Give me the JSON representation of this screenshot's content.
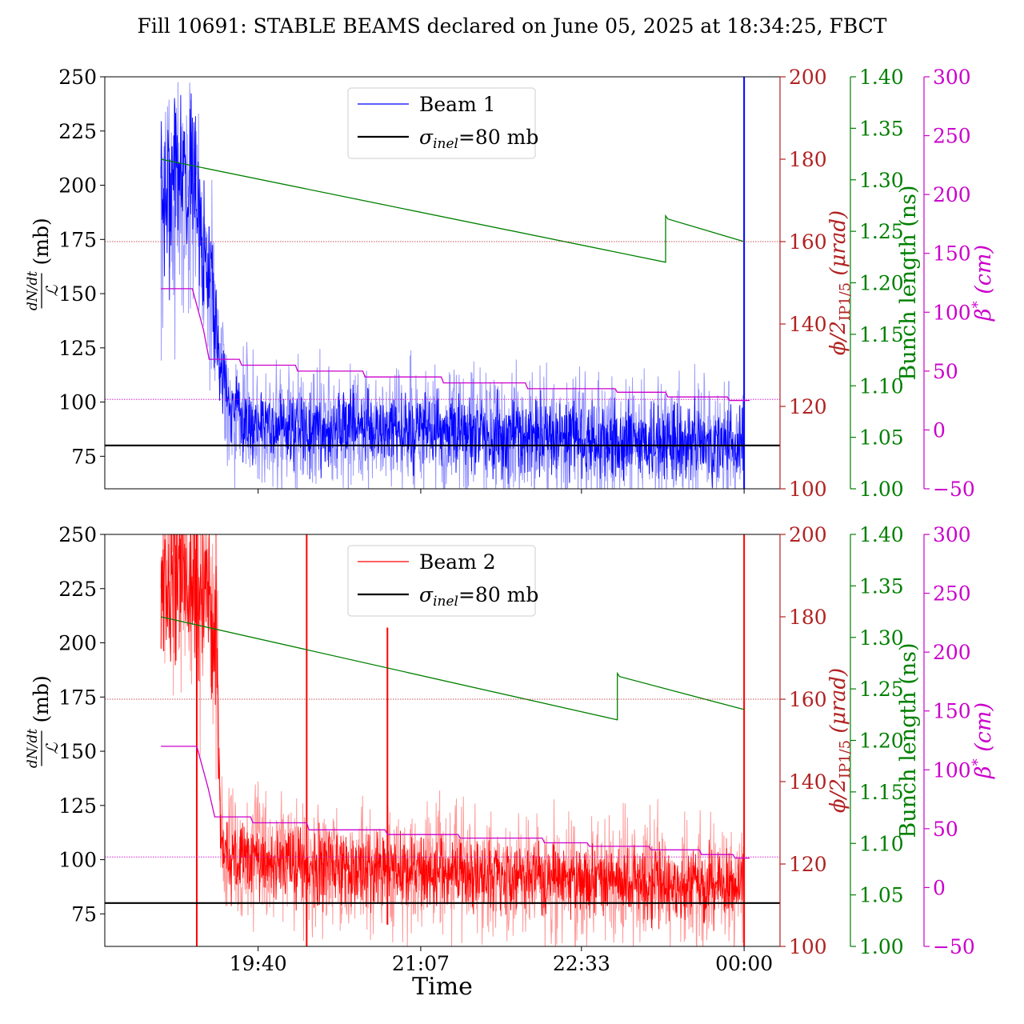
{
  "title": "Fill 10691: STABLE BEAMS declared on June 05, 2025 at 18:34:25, FBCT",
  "colors": {
    "beam1": "#0000ff",
    "beam1_light": "#9999ff",
    "beam2": "#ff0000",
    "beam2_light": "#ff9999",
    "crossing_angle": "#b22222",
    "bunch_length": "#008000",
    "beta_star": "#cc00cc",
    "reference": "#000000"
  },
  "chart_data": [
    {
      "type": "line",
      "panel": "top",
      "xlabel": "",
      "x_ticks": [
        "19:40",
        "21:07",
        "22:33",
        "00:00"
      ],
      "x_tick_hours": [
        19.667,
        21.117,
        22.55,
        24.0
      ],
      "xlim_hours": [
        18.3,
        24.32
      ],
      "ylabel": {
        "fraction_top": "dN/dt",
        "fraction_bottom": "ℒ",
        "unit": "(mb)"
      },
      "ylim": [
        60,
        250
      ],
      "y_ticks": [
        "75",
        "100",
        "125",
        "150",
        "175",
        "200",
        "225",
        "250"
      ],
      "y_tick_values": [
        75,
        100,
        125,
        150,
        175,
        200,
        225,
        250
      ],
      "legend": {
        "position": "upper-center",
        "entries": [
          {
            "label": "Beam 1",
            "series": "beam1"
          },
          {
            "label_symbol": "σ",
            "label_sub": "inel",
            "label_rest": "=80 mb",
            "series": "reference"
          }
        ]
      },
      "right_axes": [
        {
          "id": "phi",
          "label_main": "ϕ/2",
          "label_sub": "IP1/5",
          "label_unit": " (μrad)",
          "ylim": [
            100,
            200
          ],
          "ticks": [
            "100",
            "120",
            "140",
            "160",
            "180",
            "200"
          ],
          "tick_values": [
            100,
            120,
            140,
            160,
            180,
            200
          ]
        },
        {
          "id": "bunch",
          "label": "Bunch length (ns)",
          "ylim": [
            1.0,
            1.4
          ],
          "ticks": [
            "1.00",
            "1.05",
            "1.10",
            "1.15",
            "1.20",
            "1.25",
            "1.30",
            "1.35",
            "1.40"
          ],
          "tick_values": [
            1.0,
            1.05,
            1.1,
            1.15,
            1.2,
            1.25,
            1.3,
            1.35,
            1.4
          ]
        },
        {
          "id": "beta",
          "label_main": "β",
          "label_sup": "*",
          "label_unit": " (cm)",
          "ylim": [
            -50,
            300
          ],
          "ticks": [
            "−50",
            "0",
            "50",
            "100",
            "150",
            "200",
            "250",
            "300"
          ],
          "tick_values": [
            -50,
            0,
            50,
            100,
            150,
            200,
            250,
            300
          ]
        }
      ],
      "series": [
        {
          "name": "Beam 1",
          "axis": "left",
          "kind": "noisy",
          "base": {
            "x_hours": [
              18.8,
              18.95,
              19.1,
              19.25,
              19.4,
              19.6,
              20.0,
              21.0,
              22.0,
              23.0,
              23.95,
              24.0
            ],
            "y": [
              190,
              205,
              200,
              150,
              100,
              90,
              88,
              86,
              84,
              82,
              80,
              80
            ]
          },
          "noise_amplitude": [
            70,
            70,
            60,
            45,
            30,
            30,
            30,
            30,
            30,
            30,
            30,
            30
          ],
          "spikes": [
            {
              "x_hours": 24.0,
              "y_from": 60,
              "y_to": 250
            }
          ],
          "seed": 7
        },
        {
          "name": "bunch length",
          "axis": "bunch",
          "kind": "line",
          "x_hours": [
            18.8,
            23.3,
            23.3,
            23.32,
            24.0
          ],
          "y": [
            1.32,
            1.22,
            1.265,
            1.262,
            1.24
          ]
        },
        {
          "name": "beta star",
          "axis": "beta",
          "kind": "line",
          "x_hours": [
            18.8,
            19.08,
            19.18,
            19.23,
            19.5,
            19.52,
            20.0,
            20.02,
            20.6,
            20.62,
            21.3,
            21.32,
            22.05,
            22.07,
            22.85,
            22.87,
            23.3,
            23.32,
            23.85,
            23.87,
            24.05
          ],
          "y": [
            120,
            120,
            85,
            60,
            60,
            55,
            55,
            50,
            50,
            45,
            45,
            40,
            40,
            35,
            35,
            32,
            32,
            28,
            28,
            25,
            25
          ]
        },
        {
          "name": "crossing angle",
          "axis": "phi",
          "kind": "line",
          "style": "dotted",
          "x_hours": [
            18.3,
            24.32
          ],
          "y": [
            160,
            160
          ]
        },
        {
          "name": "beta reference",
          "axis": "beta",
          "kind": "line",
          "style": "dotted",
          "x_hours": [
            18.3,
            24.32
          ],
          "y": [
            26,
            26
          ]
        },
        {
          "name": "sigma inel",
          "axis": "left",
          "kind": "line",
          "x_hours": [
            18.3,
            24.32
          ],
          "y": [
            80,
            80
          ]
        }
      ]
    },
    {
      "type": "line",
      "panel": "bottom",
      "xlabel": "Time",
      "x_ticks": [
        "19:40",
        "21:07",
        "22:33",
        "00:00"
      ],
      "x_tick_hours": [
        19.667,
        21.117,
        22.55,
        24.0
      ],
      "xlim_hours": [
        18.3,
        24.32
      ],
      "ylabel": {
        "fraction_top": "dN/dt",
        "fraction_bottom": "ℒ",
        "unit": "(mb)"
      },
      "ylim": [
        60,
        250
      ],
      "y_ticks": [
        "75",
        "100",
        "125",
        "150",
        "175",
        "200",
        "225",
        "250"
      ],
      "y_tick_values": [
        75,
        100,
        125,
        150,
        175,
        200,
        225,
        250
      ],
      "legend": {
        "position": "upper-center",
        "entries": [
          {
            "label": "Beam 2",
            "series": "beam2"
          },
          {
            "label_symbol": "σ",
            "label_sub": "inel",
            "label_rest": "=80 mb",
            "series": "reference"
          }
        ]
      },
      "right_axes": [
        {
          "id": "phi",
          "label_main": "ϕ/2",
          "label_sub": "IP1/5",
          "label_unit": " (μrad)",
          "ylim": [
            100,
            200
          ],
          "ticks": [
            "100",
            "120",
            "140",
            "160",
            "180",
            "200"
          ],
          "tick_values": [
            100,
            120,
            140,
            160,
            180,
            200
          ]
        },
        {
          "id": "bunch",
          "label": "Bunch length (ns)",
          "ylim": [
            1.0,
            1.4
          ],
          "ticks": [
            "1.00",
            "1.05",
            "1.10",
            "1.15",
            "1.20",
            "1.25",
            "1.30",
            "1.35",
            "1.40"
          ],
          "tick_values": [
            1.0,
            1.05,
            1.1,
            1.15,
            1.2,
            1.25,
            1.3,
            1.35,
            1.4
          ]
        },
        {
          "id": "beta",
          "label_main": "β",
          "label_sup": "*",
          "label_unit": " (cm)",
          "ylim": [
            -50,
            300
          ],
          "ticks": [
            "−50",
            "0",
            "50",
            "100",
            "150",
            "200",
            "250",
            "300"
          ],
          "tick_values": [
            -50,
            0,
            50,
            100,
            150,
            200,
            250,
            300
          ]
        }
      ],
      "series": [
        {
          "name": "Beam 2",
          "axis": "left",
          "kind": "noisy",
          "base": {
            "x_hours": [
              18.8,
              19.0,
              19.2,
              19.3,
              19.33,
              19.6,
              20.0,
              20.5,
              21.0,
              22.0,
              23.0,
              23.95,
              24.0
            ],
            "y": [
              230,
              235,
              220,
              200,
              105,
              100,
              98,
              96,
              95,
              92,
              90,
              88,
              88
            ]
          },
          "noise_amplitude": [
            60,
            60,
            60,
            60,
            30,
            30,
            30,
            30,
            30,
            28,
            28,
            28,
            28
          ],
          "spikes": [
            {
              "x_hours": 19.12,
              "y_from": 60,
              "y_to": 250
            },
            {
              "x_hours": 20.1,
              "y_from": 60,
              "y_to": 250
            },
            {
              "x_hours": 20.82,
              "y_from": 70,
              "y_to": 207
            },
            {
              "x_hours": 24.0,
              "y_from": 60,
              "y_to": 250
            }
          ],
          "seed": 13
        },
        {
          "name": "bunch length",
          "axis": "bunch",
          "kind": "line",
          "x_hours": [
            18.8,
            22.87,
            22.87,
            22.89,
            24.0
          ],
          "y": [
            1.32,
            1.22,
            1.265,
            1.262,
            1.23
          ]
        },
        {
          "name": "beta star",
          "axis": "beta",
          "kind": "line",
          "x_hours": [
            18.8,
            19.12,
            19.22,
            19.28,
            19.6,
            19.62,
            20.1,
            20.12,
            20.8,
            20.82,
            21.45,
            21.47,
            22.2,
            22.22,
            22.6,
            22.62,
            23.15,
            23.17,
            23.6,
            23.62,
            23.9,
            23.92,
            24.05
          ],
          "y": [
            120,
            120,
            85,
            60,
            60,
            55,
            55,
            49,
            49,
            45,
            45,
            42,
            42,
            38,
            38,
            35,
            35,
            32,
            32,
            28,
            28,
            25,
            25
          ]
        },
        {
          "name": "crossing angle",
          "axis": "phi",
          "kind": "line",
          "style": "dotted",
          "x_hours": [
            18.3,
            24.32
          ],
          "y": [
            160,
            160
          ]
        },
        {
          "name": "beta reference",
          "axis": "beta",
          "kind": "line",
          "style": "dotted",
          "x_hours": [
            18.3,
            24.32
          ],
          "y": [
            26,
            26
          ]
        },
        {
          "name": "sigma inel",
          "axis": "left",
          "kind": "line",
          "x_hours": [
            18.3,
            24.32
          ],
          "y": [
            80,
            80
          ]
        }
      ]
    }
  ]
}
